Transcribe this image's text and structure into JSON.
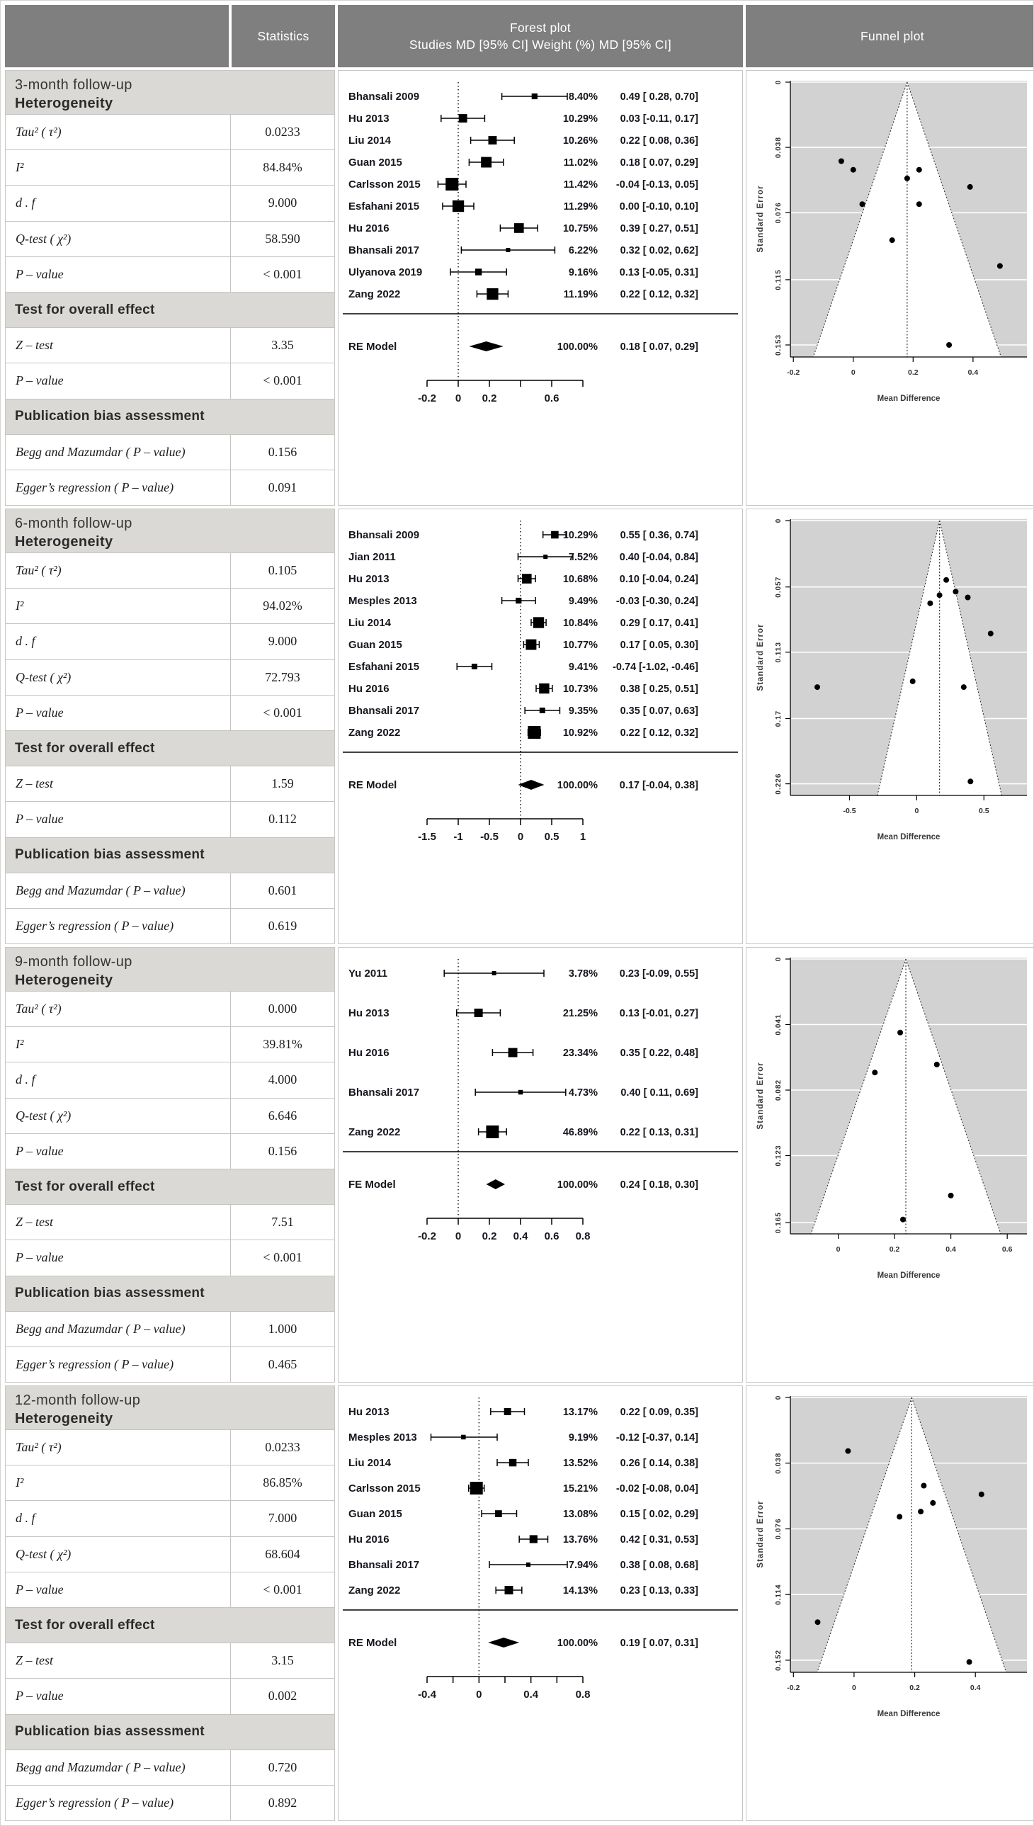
{
  "header": {
    "statistics": "Statistics",
    "forest_title": "Forest plot",
    "forest_subtitle": "Studies MD [95% CI] Weight (%) MD [95% CI]",
    "funnel_title": "Funnel plot"
  },
  "colors": {
    "header_bg": "#7f7f7f",
    "header_text": "#ffffff",
    "section_header_bg": "#dbd9d6",
    "cell_border": "#c9c7c3",
    "row_border": "#c6c4c0",
    "funnel_bg": "#d2d2d2",
    "plot_ink": "#16161d"
  },
  "sections": [
    {
      "title": "3-month follow-up",
      "subtitle": "Heterogeneity",
      "rows": [
        {
          "label": "Tau² ( τ²)",
          "value": "0.0233"
        },
        {
          "label": "I²",
          "value": "84.84%"
        },
        {
          "label": "d . f",
          "value": "9.000"
        },
        {
          "label": "Q-test ( χ²)",
          "value": "58.590"
        },
        {
          "label": "P – value",
          "value": "< 0.001"
        },
        {
          "subheader": "Test for overall effect"
        },
        {
          "label": "Z – test",
          "value": "3.35"
        },
        {
          "label": "P – value",
          "value": "< 0.001"
        },
        {
          "subheader": "Publication bias assessment"
        },
        {
          "label": "Begg and Mazumdar ( P – value)",
          "value": "0.156"
        },
        {
          "label": "Egger’s regression ( P – value)",
          "value": "0.091"
        }
      ]
    },
    {
      "title": "6-month follow-up",
      "subtitle": "Heterogeneity",
      "rows": [
        {
          "label": "Tau² ( τ²)",
          "value": "0.105"
        },
        {
          "label": "I²",
          "value": "94.02%"
        },
        {
          "label": "d . f",
          "value": "9.000"
        },
        {
          "label": "Q-test ( χ²)",
          "value": "72.793"
        },
        {
          "label": "P – value",
          "value": "< 0.001"
        },
        {
          "subheader": "Test for overall effect"
        },
        {
          "label": "Z – test",
          "value": "1.59"
        },
        {
          "label": "P – value",
          "value": "0.112"
        },
        {
          "subheader": "Publication bias assessment"
        },
        {
          "label": "Begg and Mazumdar ( P – value)",
          "value": "0.601"
        },
        {
          "label": "Egger’s regression ( P – value)",
          "value": "0.619"
        }
      ]
    },
    {
      "title": "9-month follow-up",
      "subtitle": "Heterogeneity",
      "rows": [
        {
          "label": "Tau² ( τ²)",
          "value": "0.000"
        },
        {
          "label": "I²",
          "value": "39.81%"
        },
        {
          "label": "d . f",
          "value": "4.000"
        },
        {
          "label": "Q-test ( χ²)",
          "value": "6.646"
        },
        {
          "label": "P – value",
          "value": "0.156"
        },
        {
          "subheader": "Test for overall effect"
        },
        {
          "label": "Z – test",
          "value": "7.51"
        },
        {
          "label": "P – value",
          "value": "< 0.001"
        },
        {
          "subheader": "Publication bias assessment"
        },
        {
          "label": "Begg and Mazumdar ( P – value)",
          "value": "1.000"
        },
        {
          "label": "Egger’s regression ( P – value)",
          "value": "0.465"
        }
      ]
    },
    {
      "title": "12-month follow-up",
      "subtitle": "Heterogeneity",
      "rows": [
        {
          "label": "Tau² ( τ²)",
          "value": "0.0233"
        },
        {
          "label": "I²",
          "value": "86.85%"
        },
        {
          "label": "d . f",
          "value": "7.000"
        },
        {
          "label": "Q-test ( χ²)",
          "value": "68.604"
        },
        {
          "label": "P – value",
          "value": "< 0.001"
        },
        {
          "subheader": "Test for overall effect"
        },
        {
          "label": "Z – test",
          "value": "3.15"
        },
        {
          "label": "P – value",
          "value": "0.002"
        },
        {
          "subheader": "Publication bias assessment"
        },
        {
          "label": "Begg and Mazumdar ( P – value)",
          "value": "0.720"
        },
        {
          "label": "Egger’s regression ( P – value)",
          "value": "0.892"
        }
      ]
    }
  ],
  "chart_data": [
    {
      "type": "forest",
      "section": "3-month follow-up",
      "xlim": [
        -0.2,
        0.8
      ],
      "xticks": [
        -0.2,
        0,
        0.2,
        0.4,
        0.6,
        0.8
      ],
      "xtick_labels": [
        "-0.2",
        "0",
        "0.2",
        "",
        "0.6",
        ""
      ],
      "studies": [
        {
          "name": "Bhansali 2009",
          "weight_pct": 8.4,
          "weight_label": "8.40%",
          "md": 0.49,
          "ci_lo": 0.28,
          "ci_hi": 0.7,
          "md_label": "0.49 [ 0.28, 0.70]"
        },
        {
          "name": "Hu 2013",
          "weight_pct": 10.29,
          "weight_label": "10.29%",
          "md": 0.03,
          "ci_lo": -0.11,
          "ci_hi": 0.17,
          "md_label": "0.03 [-0.11, 0.17]"
        },
        {
          "name": "Liu 2014",
          "weight_pct": 10.26,
          "weight_label": "10.26%",
          "md": 0.22,
          "ci_lo": 0.08,
          "ci_hi": 0.36,
          "md_label": "0.22 [ 0.08, 0.36]"
        },
        {
          "name": "Guan 2015",
          "weight_pct": 11.02,
          "weight_label": "11.02%",
          "md": 0.18,
          "ci_lo": 0.07,
          "ci_hi": 0.29,
          "md_label": "0.18 [ 0.07, 0.29]"
        },
        {
          "name": "Carlsson 2015",
          "weight_pct": 11.42,
          "weight_label": "11.42%",
          "md": -0.04,
          "ci_lo": -0.13,
          "ci_hi": 0.05,
          "md_label": "-0.04 [-0.13, 0.05]"
        },
        {
          "name": "Esfahani 2015",
          "weight_pct": 11.29,
          "weight_label": "11.29%",
          "md": 0.0,
          "ci_lo": -0.1,
          "ci_hi": 0.1,
          "md_label": "0.00 [-0.10, 0.10]"
        },
        {
          "name": "Hu 2016",
          "weight_pct": 10.75,
          "weight_label": "10.75%",
          "md": 0.39,
          "ci_lo": 0.27,
          "ci_hi": 0.51,
          "md_label": "0.39 [ 0.27, 0.51]"
        },
        {
          "name": "Bhansali 2017",
          "weight_pct": 6.22,
          "weight_label": "6.22%",
          "md": 0.32,
          "ci_lo": 0.02,
          "ci_hi": 0.62,
          "md_label": "0.32 [ 0.02, 0.62]"
        },
        {
          "name": "Ulyanova 2019",
          "weight_pct": 9.16,
          "weight_label": "9.16%",
          "md": 0.13,
          "ci_lo": -0.05,
          "ci_hi": 0.31,
          "md_label": "0.13 [-0.05, 0.31]"
        },
        {
          "name": "Zang 2022",
          "weight_pct": 11.19,
          "weight_label": "11.19%",
          "md": 0.22,
          "ci_lo": 0.12,
          "ci_hi": 0.32,
          "md_label": "0.22 [ 0.12, 0.32]"
        }
      ],
      "model": {
        "name": "RE Model",
        "weight_label": "100.00%",
        "md": 0.18,
        "ci_lo": 0.07,
        "ci_hi": 0.29,
        "md_label": "0.18 [ 0.07, 0.29]"
      }
    },
    {
      "type": "funnel",
      "section": "3-month follow-up",
      "xlabel": "Mean Difference",
      "ylabel": "Standard Error",
      "center": 0.18,
      "se_bottom": 0.16,
      "xlim": [
        -0.21,
        0.58
      ],
      "xticks": [
        -0.2,
        0,
        0.2,
        0.4
      ],
      "xtick_labels": [
        "-0.2",
        "0",
        "0.2",
        "0.4"
      ],
      "yticks": [
        0,
        0.038,
        0.076,
        0.115,
        0.153
      ],
      "ytick_labels": [
        "0",
        "0.038",
        "0.076",
        "0.115",
        "0.153"
      ],
      "points": [
        [
          0.49,
          0.107
        ],
        [
          0.03,
          0.071
        ],
        [
          0.22,
          0.071
        ],
        [
          0.18,
          0.056
        ],
        [
          -0.04,
          0.046
        ],
        [
          0.0,
          0.051
        ],
        [
          0.39,
          0.061
        ],
        [
          0.32,
          0.153
        ],
        [
          0.13,
          0.092
        ],
        [
          0.22,
          0.051
        ]
      ]
    },
    {
      "type": "forest",
      "section": "6-month follow-up",
      "xlim": [
        -1.5,
        1
      ],
      "xticks": [
        -1.5,
        -1,
        -0.5,
        0,
        0.5,
        1
      ],
      "xtick_labels": [
        "-1.5",
        "-1",
        "-0.5",
        "0",
        "0.5",
        "1"
      ],
      "studies": [
        {
          "name": "Bhansali 2009",
          "weight_pct": 10.29,
          "weight_label": "10.29%",
          "md": 0.55,
          "ci_lo": 0.36,
          "ci_hi": 0.74,
          "md_label": "0.55 [ 0.36, 0.74]"
        },
        {
          "name": "Jian 2011",
          "weight_pct": 7.52,
          "weight_label": "7.52%",
          "md": 0.4,
          "ci_lo": -0.04,
          "ci_hi": 0.84,
          "md_label": "0.40 [-0.04, 0.84]"
        },
        {
          "name": "Hu 2013",
          "weight_pct": 10.68,
          "weight_label": "10.68%",
          "md": 0.1,
          "ci_lo": -0.04,
          "ci_hi": 0.24,
          "md_label": "0.10 [-0.04, 0.24]"
        },
        {
          "name": "Mesples 2013",
          "weight_pct": 9.49,
          "weight_label": "9.49%",
          "md": -0.03,
          "ci_lo": -0.3,
          "ci_hi": 0.24,
          "md_label": "-0.03 [-0.30, 0.24]"
        },
        {
          "name": "Liu 2014",
          "weight_pct": 10.84,
          "weight_label": "10.84%",
          "md": 0.29,
          "ci_lo": 0.17,
          "ci_hi": 0.41,
          "md_label": "0.29 [ 0.17, 0.41]"
        },
        {
          "name": "Guan 2015",
          "weight_pct": 10.77,
          "weight_label": "10.77%",
          "md": 0.17,
          "ci_lo": 0.05,
          "ci_hi": 0.3,
          "md_label": "0.17 [ 0.05, 0.30]"
        },
        {
          "name": "Esfahani 2015",
          "weight_pct": 9.41,
          "weight_label": "9.41%",
          "md": -0.74,
          "ci_lo": -1.02,
          "ci_hi": -0.46,
          "md_label": "-0.74 [-1.02, -0.46]"
        },
        {
          "name": "Hu 2016",
          "weight_pct": 10.73,
          "weight_label": "10.73%",
          "md": 0.38,
          "ci_lo": 0.25,
          "ci_hi": 0.51,
          "md_label": "0.38 [ 0.25, 0.51]"
        },
        {
          "name": "Bhansali 2017",
          "weight_pct": 9.35,
          "weight_label": "9.35%",
          "md": 0.35,
          "ci_lo": 0.07,
          "ci_hi": 0.63,
          "md_label": "0.35 [ 0.07, 0.63]"
        },
        {
          "name": "Zang 2022",
          "weight_pct": 10.92,
          "weight_label": "10.92%",
          "md": 0.22,
          "ci_lo": 0.12,
          "ci_hi": 0.32,
          "md_label": "0.22 [ 0.12, 0.32]"
        }
      ],
      "model": {
        "name": "RE Model",
        "weight_label": "100.00%",
        "md": 0.17,
        "ci_lo": -0.04,
        "ci_hi": 0.38,
        "md_label": "0.17 [-0.04, 0.38]"
      }
    },
    {
      "type": "funnel",
      "section": "6-month follow-up",
      "xlabel": "Mean Difference",
      "ylabel": "Standard Error",
      "center": 0.17,
      "se_bottom": 0.236,
      "xlim": [
        -0.94,
        0.82
      ],
      "xticks": [
        -0.5,
        0,
        0.5
      ],
      "xtick_labels": [
        "-0.5",
        "0",
        "0.5"
      ],
      "yticks": [
        0,
        0.057,
        0.113,
        0.17,
        0.226
      ],
      "ytick_labels": [
        "0",
        "0.057",
        "0.113",
        "0.17",
        "0.226"
      ],
      "points": [
        [
          0.55,
          0.097
        ],
        [
          0.4,
          0.224
        ],
        [
          0.1,
          0.071
        ],
        [
          -0.03,
          0.138
        ],
        [
          0.29,
          0.061
        ],
        [
          0.17,
          0.064
        ],
        [
          -0.74,
          0.143
        ],
        [
          0.38,
          0.066
        ],
        [
          0.35,
          0.143
        ],
        [
          0.22,
          0.051
        ]
      ]
    },
    {
      "type": "forest",
      "section": "9-month follow-up",
      "xlim": [
        -0.2,
        0.8
      ],
      "xticks": [
        -0.2,
        0,
        0.2,
        0.4,
        0.6,
        0.8
      ],
      "xtick_labels": [
        "-0.2",
        "0",
        "0.2",
        "0.4",
        "0.6",
        "0.8"
      ],
      "studies": [
        {
          "name": "Yu 2011",
          "weight_pct": 3.78,
          "weight_label": "3.78%",
          "md": 0.23,
          "ci_lo": -0.09,
          "ci_hi": 0.55,
          "md_label": "0.23 [-0.09, 0.55]"
        },
        {
          "name": "Hu 2013",
          "weight_pct": 21.25,
          "weight_label": "21.25%",
          "md": 0.13,
          "ci_lo": -0.01,
          "ci_hi": 0.27,
          "md_label": "0.13 [-0.01, 0.27]"
        },
        {
          "name": "Hu 2016",
          "weight_pct": 23.34,
          "weight_label": "23.34%",
          "md": 0.35,
          "ci_lo": 0.22,
          "ci_hi": 0.48,
          "md_label": "0.35 [ 0.22, 0.48]"
        },
        {
          "name": "Bhansali 2017",
          "weight_pct": 4.73,
          "weight_label": "4.73%",
          "md": 0.4,
          "ci_lo": 0.11,
          "ci_hi": 0.69,
          "md_label": "0.40 [ 0.11, 0.69]"
        },
        {
          "name": "Zang 2022",
          "weight_pct": 46.89,
          "weight_label": "46.89%",
          "md": 0.22,
          "ci_lo": 0.13,
          "ci_hi": 0.31,
          "md_label": "0.22 [ 0.13, 0.31]"
        }
      ],
      "model": {
        "name": "FE Model",
        "weight_label": "100.00%",
        "md": 0.24,
        "ci_lo": 0.18,
        "ci_hi": 0.3,
        "md_label": "0.24 [ 0.18, 0.30]"
      }
    },
    {
      "type": "funnel",
      "section": "9-month follow-up",
      "xlabel": "Mean Difference",
      "ylabel": "Standard Error",
      "center": 0.24,
      "se_bottom": 0.172,
      "xlim": [
        -0.17,
        0.67
      ],
      "xticks": [
        0,
        0.2,
        0.4,
        0.6
      ],
      "xtick_labels": [
        "0",
        "0.2",
        "0.4",
        "0.6"
      ],
      "yticks": [
        0,
        0.041,
        0.082,
        0.123,
        0.165
      ],
      "ytick_labels": [
        "0",
        "0.041",
        "0.082",
        "0.123",
        "0.165"
      ],
      "points": [
        [
          0.23,
          0.163
        ],
        [
          0.13,
          0.071
        ],
        [
          0.35,
          0.066
        ],
        [
          0.4,
          0.148
        ],
        [
          0.22,
          0.046
        ]
      ]
    },
    {
      "type": "forest",
      "section": "12-month follow-up",
      "xlim": [
        -0.4,
        0.8
      ],
      "xticks": [
        -0.4,
        -0.2,
        0,
        0.2,
        0.4,
        0.6,
        0.8
      ],
      "xtick_labels": [
        "-0.4",
        "",
        "0",
        "",
        "0.4",
        "",
        "0.8"
      ],
      "studies": [
        {
          "name": "Hu 2013",
          "weight_pct": 13.17,
          "weight_label": "13.17%",
          "md": 0.22,
          "ci_lo": 0.09,
          "ci_hi": 0.35,
          "md_label": "0.22 [ 0.09, 0.35]"
        },
        {
          "name": "Mesples 2013",
          "weight_pct": 9.19,
          "weight_label": "9.19%",
          "md": -0.12,
          "ci_lo": -0.37,
          "ci_hi": 0.14,
          "md_label": "-0.12 [-0.37, 0.14]"
        },
        {
          "name": "Liu 2014",
          "weight_pct": 13.52,
          "weight_label": "13.52%",
          "md": 0.26,
          "ci_lo": 0.14,
          "ci_hi": 0.38,
          "md_label": "0.26 [ 0.14, 0.38]"
        },
        {
          "name": "Carlsson 2015",
          "weight_pct": 15.21,
          "weight_label": "15.21%",
          "md": -0.02,
          "ci_lo": -0.08,
          "ci_hi": 0.04,
          "md_label": "-0.02 [-0.08, 0.04]"
        },
        {
          "name": "Guan 2015",
          "weight_pct": 13.08,
          "weight_label": "13.08%",
          "md": 0.15,
          "ci_lo": 0.02,
          "ci_hi": 0.29,
          "md_label": "0.15 [ 0.02, 0.29]"
        },
        {
          "name": "Hu 2016",
          "weight_pct": 13.76,
          "weight_label": "13.76%",
          "md": 0.42,
          "ci_lo": 0.31,
          "ci_hi": 0.53,
          "md_label": "0.42 [ 0.31, 0.53]"
        },
        {
          "name": "Bhansali 2017",
          "weight_pct": 7.94,
          "weight_label": "7.94%",
          "md": 0.38,
          "ci_lo": 0.08,
          "ci_hi": 0.68,
          "md_label": "0.38 [ 0.08, 0.68]"
        },
        {
          "name": "Zang 2022",
          "weight_pct": 14.13,
          "weight_label": "14.13%",
          "md": 0.23,
          "ci_lo": 0.13,
          "ci_hi": 0.33,
          "md_label": "0.23 [ 0.13, 0.33]"
        }
      ],
      "model": {
        "name": "RE Model",
        "weight_label": "100.00%",
        "md": 0.19,
        "ci_lo": 0.07,
        "ci_hi": 0.31,
        "md_label": "0.19 [ 0.07, 0.31]"
      }
    },
    {
      "type": "funnel",
      "section": "12-month follow-up",
      "xlabel": "Mean Difference",
      "ylabel": "Standard Error",
      "center": 0.19,
      "se_bottom": 0.159,
      "xlim": [
        -0.21,
        0.57
      ],
      "xticks": [
        -0.2,
        0,
        0.2,
        0.4
      ],
      "xtick_labels": [
        "-0.2",
        "0",
        "0.2",
        "0.4"
      ],
      "yticks": [
        0,
        0.038,
        0.076,
        0.114,
        0.152
      ],
      "ytick_labels": [
        "0",
        "0.038",
        "0.076",
        "0.114",
        "0.152"
      ],
      "points": [
        [
          0.22,
          0.066
        ],
        [
          -0.12,
          0.13
        ],
        [
          0.26,
          0.061
        ],
        [
          -0.02,
          0.031
        ],
        [
          0.15,
          0.069
        ],
        [
          0.42,
          0.056
        ],
        [
          0.38,
          0.153
        ],
        [
          0.23,
          0.051
        ]
      ]
    }
  ]
}
